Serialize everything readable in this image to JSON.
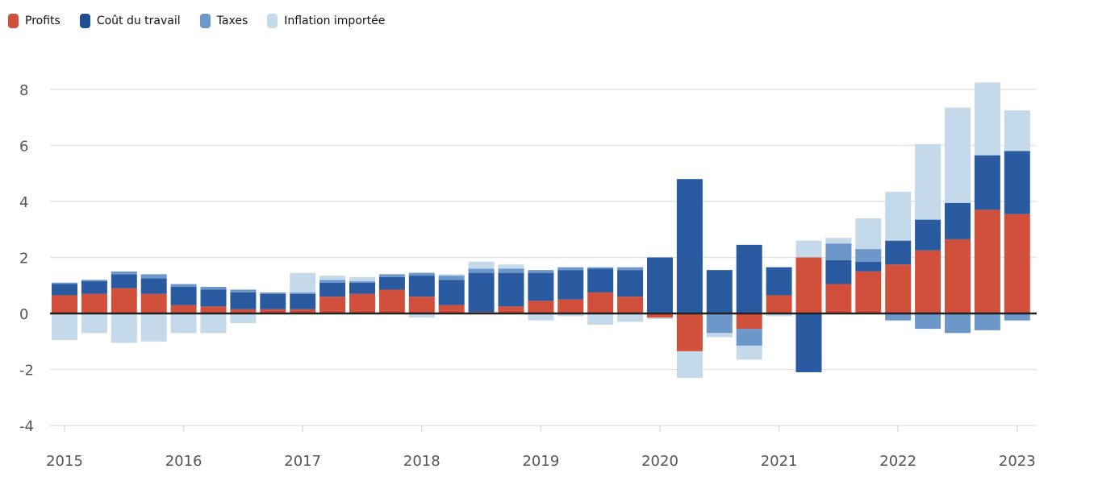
{
  "chart_data": {
    "type": "bar",
    "stacked": true,
    "title": "",
    "xlabel": "",
    "ylabel": "",
    "ylim": [
      -4,
      8
    ],
    "yticks": [
      8,
      6,
      4,
      2,
      0,
      -2,
      -4
    ],
    "grid": true,
    "legend_position": "top-left",
    "xtick_labels": [
      "2015",
      "2016",
      "2017",
      "2018",
      "2019",
      "2020",
      "2021",
      "2022",
      "2023"
    ],
    "categories": [
      "2015-Q1",
      "2015-Q2",
      "2015-Q3",
      "2015-Q4",
      "2016-Q1",
      "2016-Q2",
      "2016-Q3",
      "2016-Q4",
      "2017-Q1",
      "2017-Q2",
      "2017-Q3",
      "2017-Q4",
      "2018-Q1",
      "2018-Q2",
      "2018-Q3",
      "2018-Q4",
      "2019-Q1",
      "2019-Q2",
      "2019-Q3",
      "2019-Q4",
      "2020-Q1",
      "2020-Q2",
      "2020-Q3",
      "2020-Q4",
      "2021-Q1",
      "2021-Q2",
      "2021-Q3",
      "2021-Q4",
      "2022-Q1",
      "2022-Q2",
      "2022-Q3",
      "2022-Q4",
      "2023-Q1"
    ],
    "series": [
      {
        "name": "Profits",
        "color": "#d1503c",
        "values": [
          0.65,
          0.7,
          0.9,
          0.7,
          0.3,
          0.25,
          0.15,
          0.15,
          0.15,
          0.6,
          0.7,
          0.85,
          0.6,
          0.3,
          0.05,
          0.25,
          0.45,
          0.5,
          0.75,
          0.6,
          -0.15,
          -1.35,
          0,
          -0.55,
          0.65,
          2.0,
          1.05,
          1.5,
          1.75,
          2.25,
          2.65,
          3.7,
          3.55
        ]
      },
      {
        "name": "Coût du travail",
        "color": "#2a5a9f",
        "values": [
          0.4,
          0.45,
          0.5,
          0.55,
          0.65,
          0.6,
          0.6,
          0.55,
          0.55,
          0.5,
          0.4,
          0.45,
          0.75,
          0.9,
          1.4,
          1.2,
          1.0,
          1.05,
          0.85,
          0.95,
          2.0,
          4.8,
          1.55,
          2.45,
          1.0,
          -2.1,
          0.85,
          0.35,
          0.85,
          1.1,
          1.3,
          1.95,
          2.25
        ]
      },
      {
        "name": "Taxes",
        "color": "#6d97c9",
        "values": [
          0.05,
          0.05,
          0.1,
          0.15,
          0.1,
          0.1,
          0.1,
          0.05,
          0.05,
          0.1,
          0.05,
          0.1,
          0.1,
          0.15,
          0.15,
          0.15,
          0.1,
          0.1,
          0.05,
          0.1,
          0,
          0,
          -0.7,
          -0.6,
          0,
          0,
          0.6,
          0.45,
          -0.25,
          -0.55,
          -0.7,
          -0.6,
          -0.25
        ]
      },
      {
        "name": "Inflation importée",
        "color": "#c4d9ea",
        "values": [
          -0.95,
          -0.7,
          -1.05,
          -1.0,
          -0.7,
          -0.7,
          -0.35,
          0,
          0.7,
          0.15,
          0.15,
          0,
          -0.15,
          0.05,
          0.25,
          0.15,
          -0.25,
          -0.1,
          -0.4,
          -0.3,
          -0.05,
          -0.95,
          -0.15,
          -0.5,
          -0.1,
          0.6,
          0.2,
          1.1,
          1.75,
          2.7,
          3.4,
          2.6,
          1.45
        ]
      }
    ]
  }
}
